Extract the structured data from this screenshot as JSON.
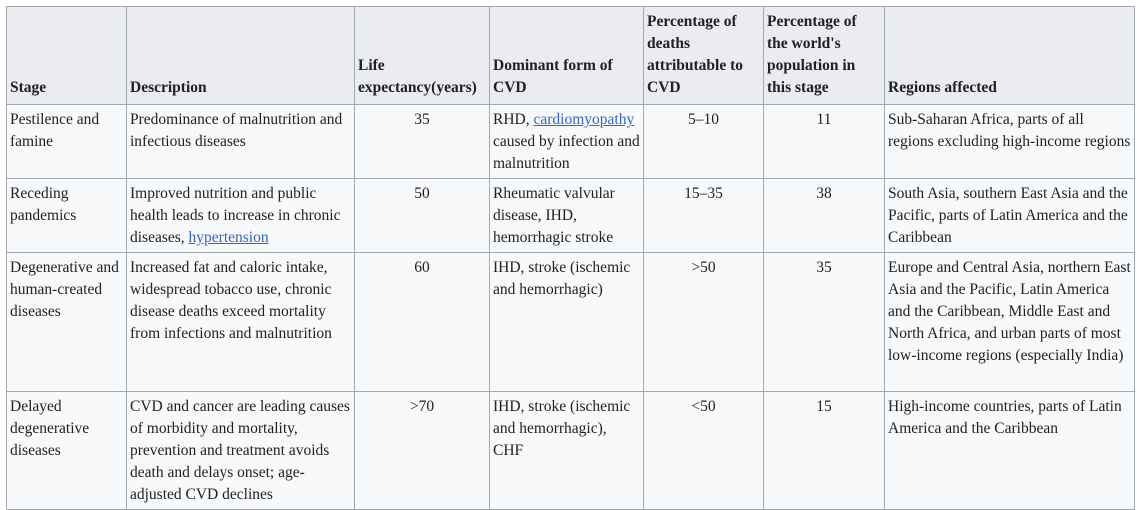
{
  "headers": {
    "stage": "Stage",
    "description": "Description",
    "life_expectancy": "Life expectancy(years)",
    "dominant_form": "Dominant form of CVD",
    "pct_deaths": "Percentage of deaths attributable to CVD",
    "pct_population": "Percentage of the world's population in this stage",
    "regions": "Regions affected"
  },
  "rows": [
    {
      "stage": "Pestilence and famine",
      "description": "Predominance of malnutrition and infectious diseases",
      "life_expectancy": "35",
      "cvd_pre": "RHD, ",
      "cvd_link": "cardiomyopathy",
      "cvd_post": " caused by infection and malnutrition",
      "pct_deaths": "5–10",
      "pct_population": "11",
      "regions": "Sub-Saharan Africa, parts of all regions excluding high-income regions"
    },
    {
      "stage": "Receding pandemics",
      "description_pre": "Improved nutrition and public health leads to increase in chronic diseases, ",
      "description_link": "hypertension",
      "life_expectancy": "50",
      "cvd": "Rheumatic valvular disease, IHD, hemorrhagic stroke",
      "pct_deaths": "15–35",
      "pct_population": "38",
      "regions": "South Asia, southern East Asia and the Pacific, parts of Latin America and the Caribbean"
    },
    {
      "stage": "Degenerative and human-created diseases",
      "description": "Increased fat and caloric intake, widespread tobacco use, chronic disease deaths exceed mortality from infections and malnutrition",
      "life_expectancy": "60",
      "cvd": "IHD, stroke (ischemic and hemorrhagic)",
      "pct_deaths": ">50",
      "pct_population": "35",
      "regions": "Europe and Central Asia, northern East Asia and the Pacific, Latin America and the Caribbean, Middle East and North Africa, and urban parts of most low-income regions (especially India)"
    },
    {
      "stage": "Delayed degenerative diseases",
      "description": "CVD and cancer are leading causes of morbidity and mortality, prevention and treatment avoids death and delays onset; age-adjusted CVD declines",
      "life_expectancy": ">70",
      "cvd": "IHD, stroke (ischemic and hemorrhagic), CHF",
      "pct_deaths": "<50",
      "pct_population": "15",
      "regions": "High-income countries, parts of Latin America and the Caribbean"
    }
  ]
}
